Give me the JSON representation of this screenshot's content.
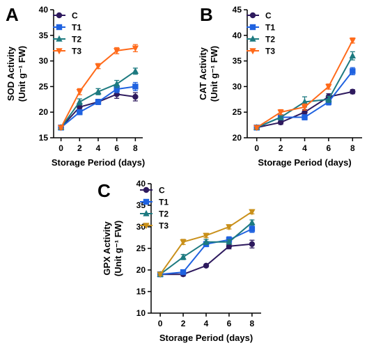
{
  "colors": {
    "C": "#2e1a5e",
    "T1": "#1f62e0",
    "T2": "#1d7a80",
    "T3_AB": "#ff6a1a",
    "T3_C": "#c9901a"
  },
  "chart_data": [
    {
      "panel": "A",
      "type": "line",
      "xlabel": "Storage Period (days)",
      "ylabel_line1": "SOD Activity",
      "ylabel_line2": "(Unit g⁻¹ FW)",
      "x": [
        0,
        2,
        4,
        6,
        8
      ],
      "xticks": [
        "0",
        "2",
        "4",
        "6",
        "8"
      ],
      "ylim": [
        15,
        40
      ],
      "yticks": [
        "15",
        "20",
        "25",
        "30",
        "35",
        "40"
      ],
      "legend_position": "top-left",
      "series": [
        {
          "name": "C",
          "marker": "circle",
          "values": [
            17,
            21,
            22,
            23.5,
            23
          ],
          "errors": [
            0.3,
            0.5,
            0.5,
            0.8,
            0.8
          ]
        },
        {
          "name": "T1",
          "marker": "square",
          "values": [
            17,
            20,
            22,
            24.5,
            25
          ],
          "errors": [
            0.3,
            0.5,
            0.5,
            0.7,
            0.8
          ]
        },
        {
          "name": "T2",
          "marker": "triangle-up",
          "values": [
            17,
            22,
            24,
            25.5,
            28
          ],
          "errors": [
            0.3,
            0.6,
            0.6,
            0.7,
            0.6
          ]
        },
        {
          "name": "T3",
          "marker": "triangle-down",
          "values": [
            17,
            24,
            29,
            32,
            32.5
          ],
          "errors": [
            0.3,
            0.6,
            0.5,
            0.6,
            0.7
          ]
        }
      ]
    },
    {
      "panel": "B",
      "type": "line",
      "xlabel": "Storage Period (days)",
      "ylabel_line1": "CAT Activity",
      "ylabel_line2": "(Unit g⁻¹ FW)",
      "x": [
        0,
        2,
        4,
        6,
        8
      ],
      "xticks": [
        "0",
        "2",
        "4",
        "6",
        "8"
      ],
      "ylim": [
        20,
        45
      ],
      "yticks": [
        "20",
        "25",
        "30",
        "35",
        "40",
        "45"
      ],
      "legend_position": "top-left",
      "series": [
        {
          "name": "C",
          "marker": "circle",
          "values": [
            22,
            23,
            25,
            28,
            29
          ],
          "errors": [
            0.3,
            0.4,
            0.5,
            0.6,
            0.4
          ]
        },
        {
          "name": "T1",
          "marker": "square",
          "values": [
            22,
            24,
            24,
            27,
            33
          ],
          "errors": [
            0.3,
            0.5,
            0.5,
            0.6,
            0.7
          ]
        },
        {
          "name": "T2",
          "marker": "triangle-up",
          "values": [
            22,
            24,
            27,
            27.5,
            36
          ],
          "errors": [
            0.3,
            0.5,
            1.0,
            0.6,
            0.8
          ]
        },
        {
          "name": "T3",
          "marker": "triangle-down",
          "values": [
            22,
            25,
            26,
            30,
            39
          ],
          "errors": [
            0.3,
            0.5,
            0.6,
            0.5,
            0.5
          ]
        }
      ]
    },
    {
      "panel": "C",
      "type": "line",
      "xlabel": "Storage Period (days)",
      "ylabel_line1": "GPX Activity",
      "ylabel_line2": "(Unit g⁻¹ FW)",
      "x": [
        0,
        2,
        4,
        6,
        8
      ],
      "xticks": [
        "0",
        "2",
        "4",
        "6",
        "8"
      ],
      "ylim": [
        10,
        40
      ],
      "yticks": [
        "10",
        "15",
        "20",
        "25",
        "30",
        "35",
        "40"
      ],
      "legend_position": "top-left",
      "series": [
        {
          "name": "C",
          "marker": "circle",
          "values": [
            19,
            19,
            21,
            25.5,
            26
          ],
          "errors": [
            0.3,
            0.4,
            0.3,
            0.6,
            0.9
          ]
        },
        {
          "name": "T1",
          "marker": "square",
          "values": [
            19,
            19.5,
            26,
            27,
            29.5
          ],
          "errors": [
            0.3,
            0.5,
            0.6,
            0.7,
            0.8
          ]
        },
        {
          "name": "T2",
          "marker": "triangle-up",
          "values": [
            19,
            23,
            26.5,
            26.5,
            31
          ],
          "errors": [
            0.3,
            0.6,
            0.6,
            0.5,
            0.6
          ]
        },
        {
          "name": "T3",
          "marker": "triangle-down",
          "values": [
            19,
            26.5,
            28,
            30,
            33.5
          ],
          "errors": [
            0.3,
            0.6,
            0.5,
            0.5,
            0.5
          ]
        }
      ]
    }
  ]
}
